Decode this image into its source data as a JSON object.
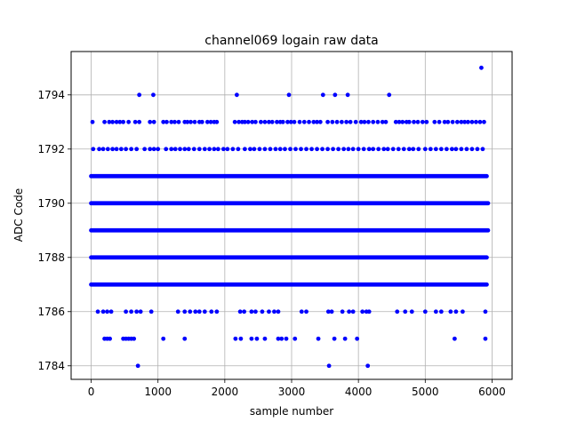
{
  "chart_data": {
    "type": "scatter",
    "title": "channel069 logain raw data",
    "xlabel": "sample number",
    "ylabel": "ADC Code",
    "xlim": [
      -300,
      6300
    ],
    "ylim": [
      1783.5,
      1795.6
    ],
    "xticks": [
      0,
      1000,
      2000,
      3000,
      4000,
      5000,
      6000
    ],
    "yticks": [
      1784,
      1786,
      1788,
      1790,
      1792,
      1794
    ],
    "grid": true,
    "marker_color": "#0000ff",
    "n_samples": 6000,
    "series": [
      {
        "name": "",
        "dense_levels": [
          {
            "y": 1787,
            "x_range": [
              0,
              5920
            ]
          },
          {
            "y": 1788,
            "x_range": [
              0,
              5920
            ]
          },
          {
            "y": 1789,
            "x_range": [
              0,
              5940
            ]
          },
          {
            "y": 1790,
            "x_range": [
              0,
              5940
            ]
          },
          {
            "y": 1791,
            "x_range": [
              0,
              5920
            ]
          }
        ],
        "sparse_points": {
          "1795": [
            5840
          ],
          "1794": [
            720,
            930,
            2180,
            2960,
            3470,
            3650,
            3840,
            4460
          ],
          "1793": [
            20,
            200,
            270,
            320,
            380,
            430,
            480,
            560,
            660,
            720,
            880,
            940,
            1080,
            1130,
            1200,
            1250,
            1310,
            1400,
            1440,
            1490,
            1550,
            1620,
            1660,
            1740,
            1790,
            1840,
            1880,
            2150,
            2210,
            2260,
            2300,
            2350,
            2410,
            2460,
            2540,
            2600,
            2660,
            2710,
            2780,
            2830,
            2870,
            2940,
            2990,
            3040,
            3120,
            3190,
            3260,
            3330,
            3380,
            3430,
            3540,
            3610,
            3680,
            3750,
            3820,
            3880,
            3960,
            4040,
            4090,
            4150,
            4220,
            4290,
            4360,
            4410,
            4560,
            4610,
            4660,
            4720,
            4760,
            4830,
            4890,
            4960,
            5020,
            5140,
            5210,
            5290,
            5340,
            5410,
            5480,
            5540,
            5590,
            5640,
            5700,
            5760,
            5820,
            5880
          ],
          "1792": [
            30,
            120,
            180,
            250,
            320,
            380,
            450,
            520,
            600,
            680,
            800,
            880,
            940,
            1000,
            1120,
            1200,
            1260,
            1330,
            1400,
            1460,
            1540,
            1620,
            1700,
            1770,
            1840,
            1900,
            1980,
            2040,
            2120,
            2200,
            2300,
            2380,
            2440,
            2520,
            2600,
            2680,
            2760,
            2830,
            2900,
            2980,
            3060,
            3140,
            3220,
            3300,
            3380,
            3460,
            3540,
            3620,
            3700,
            3780,
            3850,
            3920,
            4000,
            4080,
            4160,
            4220,
            4300,
            4380,
            4440,
            4520,
            4600,
            4680,
            4760,
            4820,
            4900,
            5000,
            5080,
            5160,
            5240,
            5320,
            5400,
            5460,
            5540,
            5620,
            5700,
            5780,
            5860
          ],
          "1786": [
            100,
            180,
            240,
            300,
            520,
            600,
            680,
            740,
            900,
            1300,
            1400,
            1480,
            1560,
            1620,
            1700,
            1800,
            1880,
            2230,
            2290,
            2400,
            2460,
            2560,
            2660,
            2740,
            2800,
            3150,
            3220,
            3550,
            3600,
            3760,
            3860,
            3920,
            4060,
            4120,
            4160,
            4580,
            4700,
            4800,
            5000,
            5160,
            5240,
            5380,
            5460,
            5560,
            5900
          ],
          "1785": [
            200,
            240,
            280,
            480,
            520,
            560,
            600,
            640,
            1080,
            1400,
            2160,
            2240,
            2400,
            2480,
            2600,
            2800,
            2850,
            2920,
            3050,
            3400,
            3640,
            3800,
            3980,
            5440,
            5900
          ],
          "1784": [
            700,
            3560,
            4140
          ]
        }
      }
    ]
  }
}
